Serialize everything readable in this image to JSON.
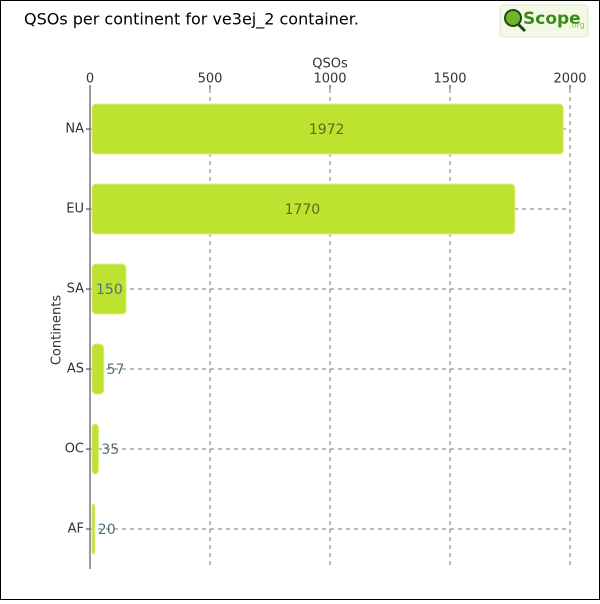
{
  "chart_data": {
    "type": "bar",
    "orientation": "horizontal",
    "title": "QSOs per continent for ve3ej_2 container.",
    "logo": "Scope",
    "logo_domain": ".org",
    "xlabel": "QSOs",
    "ylabel": "Continents",
    "categories": [
      "NA",
      "EU",
      "SA",
      "AS",
      "OC",
      "AF"
    ],
    "values": [
      1972,
      1770,
      150,
      57,
      35,
      20
    ],
    "color": "#bde22f",
    "xlim": [
      0,
      2000
    ],
    "xticks": [
      0,
      500,
      1000,
      1500,
      2000
    ],
    "grid": true
  }
}
